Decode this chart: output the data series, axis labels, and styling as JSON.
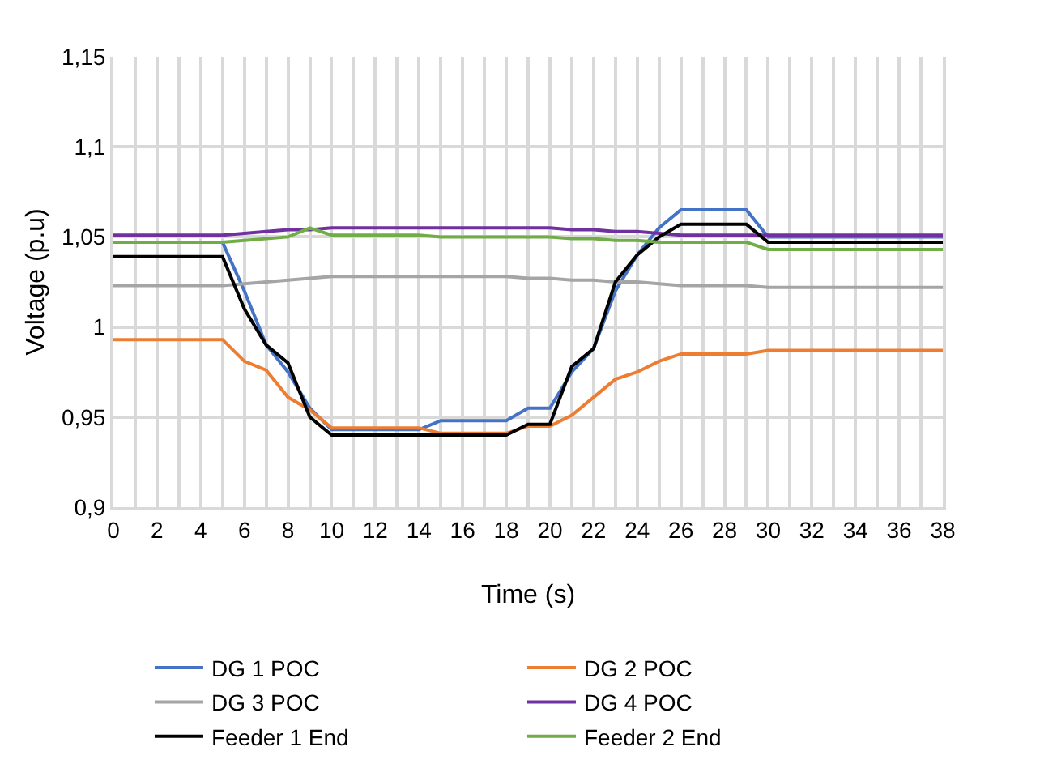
{
  "chart_data": {
    "type": "line",
    "xlabel": "Time (s)",
    "ylabel": "Voltage (p.u)",
    "x": [
      0,
      1,
      2,
      3,
      4,
      5,
      6,
      7,
      8,
      9,
      10,
      11,
      12,
      13,
      14,
      15,
      16,
      17,
      18,
      19,
      20,
      21,
      22,
      23,
      24,
      25,
      26,
      27,
      28,
      29,
      30,
      31,
      32,
      33,
      34,
      35,
      36,
      37,
      38
    ],
    "series": [
      {
        "name": "DG 1 POC",
        "color": "#4472c4",
        "values": [
          null,
          null,
          null,
          null,
          null,
          1.047,
          1.02,
          0.99,
          0.975,
          0.955,
          0.943,
          0.943,
          0.943,
          0.943,
          0.943,
          0.948,
          0.948,
          0.948,
          0.948,
          0.955,
          0.955,
          0.975,
          0.988,
          1.02,
          1.04,
          1.055,
          1.065,
          1.065,
          1.065,
          1.065,
          1.05,
          1.05,
          1.05,
          1.05,
          1.05,
          1.05,
          1.05,
          1.05,
          1.05
        ]
      },
      {
        "name": "DG 2 POC",
        "color": "#ed7d31",
        "values": [
          0.993,
          0.993,
          0.993,
          0.993,
          0.993,
          0.993,
          0.981,
          0.976,
          0.961,
          0.954,
          0.944,
          0.944,
          0.944,
          0.944,
          0.944,
          0.941,
          0.941,
          0.941,
          0.941,
          0.945,
          0.945,
          0.951,
          0.961,
          0.971,
          0.975,
          0.981,
          0.985,
          0.985,
          0.985,
          0.985,
          0.987,
          0.987,
          0.987,
          0.987,
          0.987,
          0.987,
          0.987,
          0.987,
          0.987
        ]
      },
      {
        "name": "DG 3 POC",
        "color": "#a5a5a5",
        "values": [
          1.023,
          1.023,
          1.023,
          1.023,
          1.023,
          1.023,
          1.024,
          1.025,
          1.026,
          1.027,
          1.028,
          1.028,
          1.028,
          1.028,
          1.028,
          1.028,
          1.028,
          1.028,
          1.028,
          1.027,
          1.027,
          1.026,
          1.026,
          1.025,
          1.025,
          1.024,
          1.023,
          1.023,
          1.023,
          1.023,
          1.022,
          1.022,
          1.022,
          1.022,
          1.022,
          1.022,
          1.022,
          1.022,
          1.022
        ]
      },
      {
        "name": "DG 4 POC",
        "color": "#7030a0",
        "values": [
          1.051,
          1.051,
          1.051,
          1.051,
          1.051,
          1.051,
          1.052,
          1.053,
          1.054,
          1.054,
          1.055,
          1.055,
          1.055,
          1.055,
          1.055,
          1.055,
          1.055,
          1.055,
          1.055,
          1.055,
          1.055,
          1.054,
          1.054,
          1.053,
          1.053,
          1.052,
          1.051,
          1.051,
          1.051,
          1.051,
          1.051,
          1.051,
          1.051,
          1.051,
          1.051,
          1.051,
          1.051,
          1.051,
          1.051
        ]
      },
      {
        "name": "Feeder 1 End",
        "color": "#000000",
        "values": [
          1.039,
          1.039,
          1.039,
          1.039,
          1.039,
          1.039,
          1.01,
          0.99,
          0.98,
          0.95,
          0.94,
          0.94,
          0.94,
          0.94,
          0.94,
          0.94,
          0.94,
          0.94,
          0.94,
          0.946,
          0.946,
          0.978,
          0.988,
          1.025,
          1.04,
          1.05,
          1.057,
          1.057,
          1.057,
          1.057,
          1.047,
          1.047,
          1.047,
          1.047,
          1.047,
          1.047,
          1.047,
          1.047,
          1.047
        ]
      },
      {
        "name": "Feeder 2 End",
        "color": "#70ad47",
        "values": [
          1.047,
          1.047,
          1.047,
          1.047,
          1.047,
          1.047,
          1.048,
          1.049,
          1.05,
          1.055,
          1.051,
          1.051,
          1.051,
          1.051,
          1.051,
          1.05,
          1.05,
          1.05,
          1.05,
          1.05,
          1.05,
          1.049,
          1.049,
          1.048,
          1.048,
          1.047,
          1.047,
          1.047,
          1.047,
          1.047,
          1.043,
          1.043,
          1.043,
          1.043,
          1.043,
          1.043,
          1.043,
          1.043,
          1.043
        ]
      }
    ],
    "xlim": [
      0,
      38
    ],
    "xticks": [
      0,
      2,
      4,
      6,
      8,
      10,
      12,
      14,
      16,
      18,
      20,
      22,
      24,
      26,
      28,
      30,
      32,
      34,
      36,
      38
    ],
    "ylim": [
      0.9,
      1.15
    ],
    "yticks": [
      {
        "value": 0.9,
        "label": "0,9"
      },
      {
        "value": 0.95,
        "label": "0,95"
      },
      {
        "value": 1,
        "label": "1"
      },
      {
        "value": 1.05,
        "label": "1,05"
      },
      {
        "value": 1.1,
        "label": "1,1"
      },
      {
        "value": 1.15,
        "label": "1,15"
      }
    ],
    "grid": true,
    "legend": "bottom",
    "marker": "none",
    "line_style": "solid"
  }
}
